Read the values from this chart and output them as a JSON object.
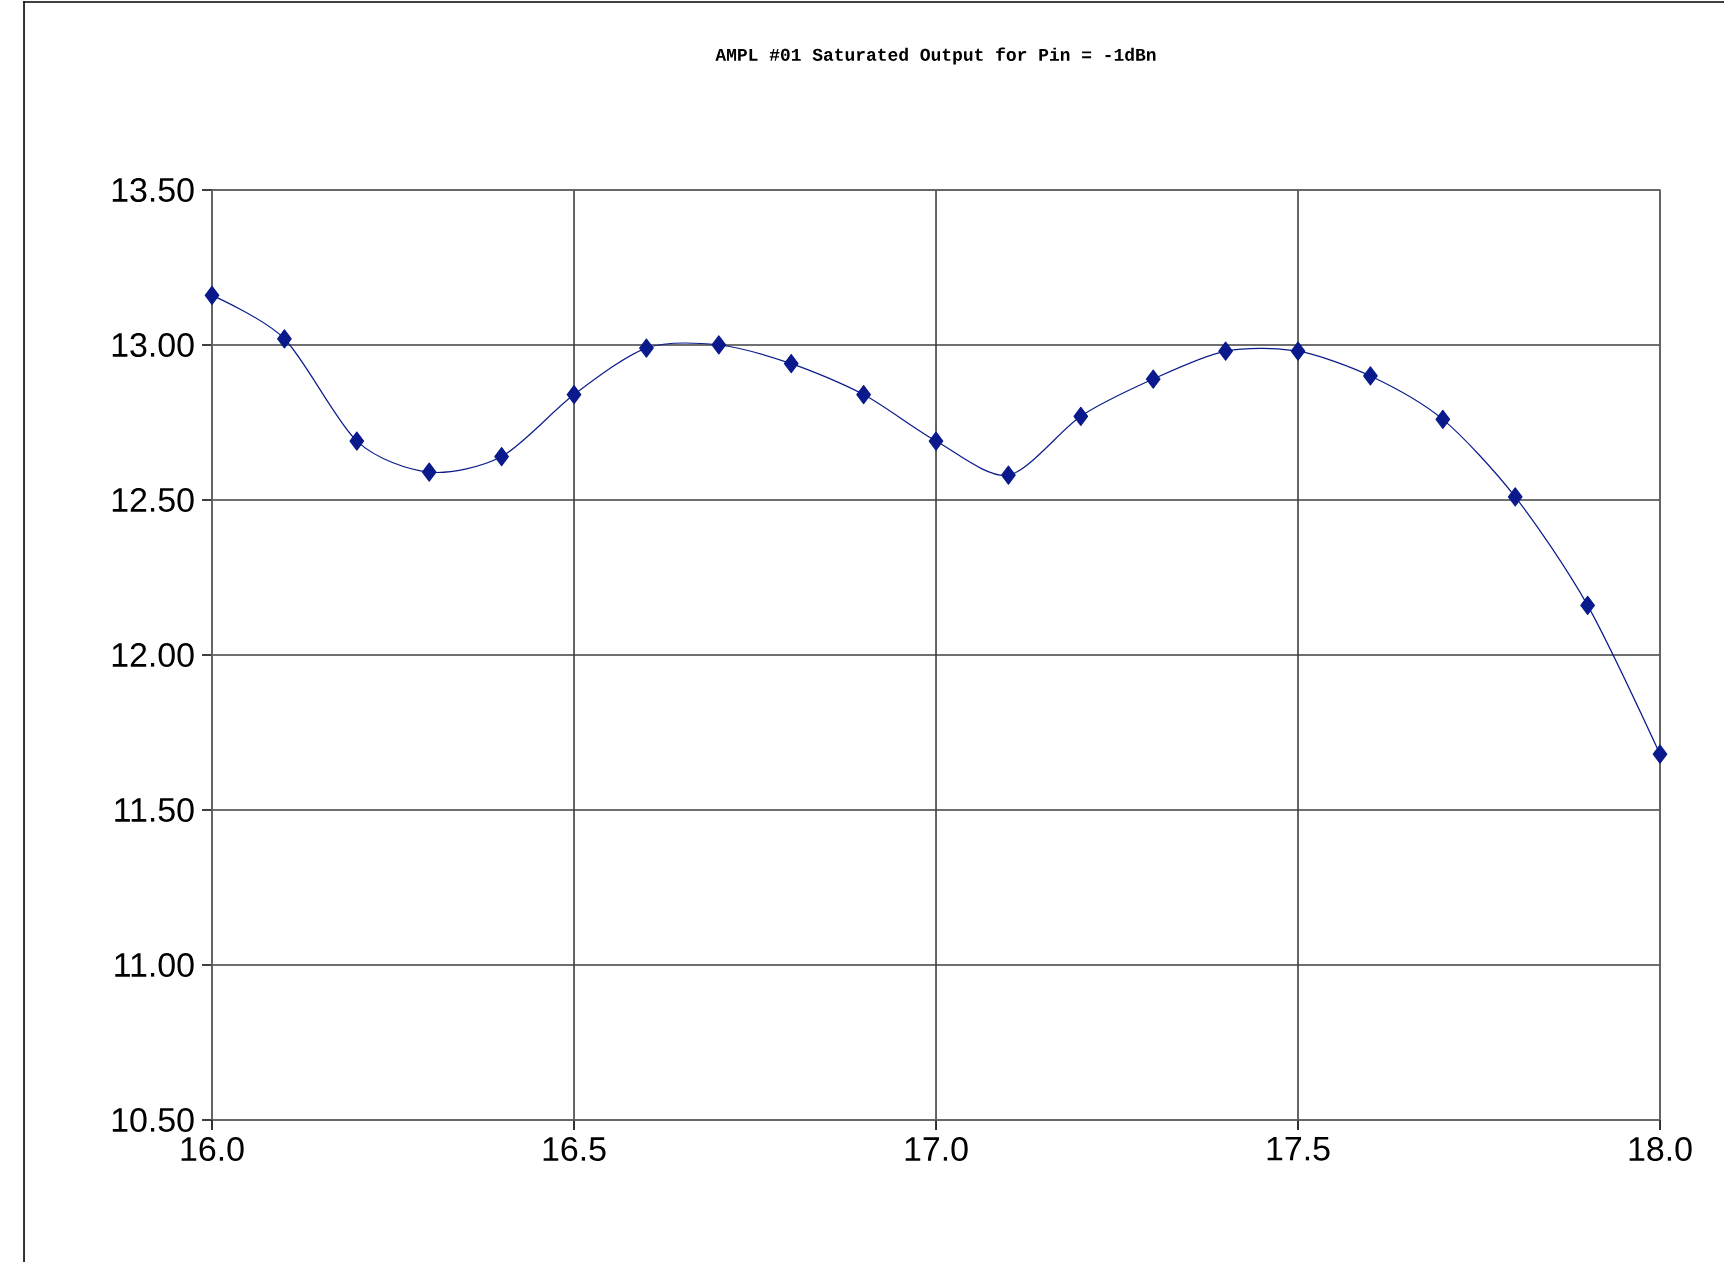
{
  "chart_data": {
    "type": "line",
    "title": "AMPL #01 Saturated Output for Pin = -1dBn",
    "x": [
      16.0,
      16.1,
      16.2,
      16.3,
      16.4,
      16.5,
      16.6,
      16.7,
      16.8,
      16.9,
      17.0,
      17.1,
      17.2,
      17.3,
      17.4,
      17.5,
      17.6,
      17.7,
      17.8,
      17.9,
      18.0
    ],
    "series": [
      {
        "color": "#0a1a8c",
        "values": [
          13.16,
          13.02,
          12.69,
          12.59,
          12.64,
          12.84,
          12.99,
          13.0,
          12.94,
          12.84,
          12.69,
          12.58,
          12.77,
          12.89,
          12.98,
          12.98,
          12.9,
          12.76,
          12.51,
          12.16,
          11.68
        ]
      }
    ],
    "xlim": [
      16.0,
      18.0
    ],
    "xticks": [
      {
        "value": 16.0,
        "label": "16.0"
      },
      {
        "value": 16.5,
        "label": "16.5"
      },
      {
        "value": 17.0,
        "label": "17.0"
      },
      {
        "value": 17.5,
        "label": "17.5"
      },
      {
        "value": 18.0,
        "label": "18.0"
      }
    ],
    "ylim": [
      10.5,
      13.5
    ],
    "yticks": [
      {
        "value": 10.5,
        "label": "10.50"
      },
      {
        "value": 11.0,
        "label": "11.00"
      },
      {
        "value": 11.5,
        "label": "11.50"
      },
      {
        "value": 12.0,
        "label": "12.00"
      },
      {
        "value": 12.5,
        "label": "12.50"
      },
      {
        "value": 13.0,
        "label": "13.00"
      },
      {
        "value": 13.5,
        "label": "13.50"
      }
    ],
    "grid": true,
    "marker": "diamond",
    "line_style": "solid"
  }
}
